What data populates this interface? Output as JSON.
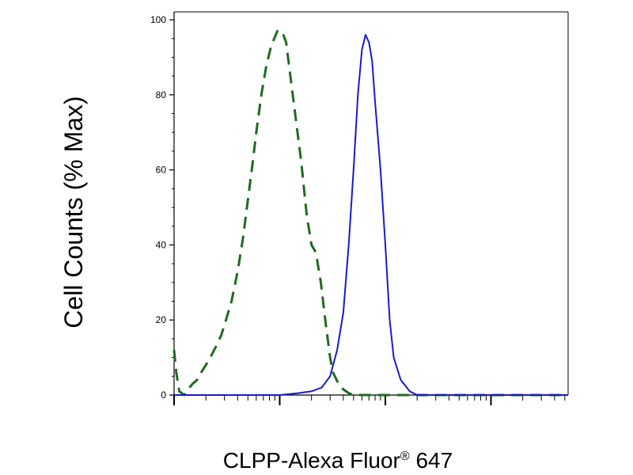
{
  "chart_data": {
    "type": "line",
    "title": "",
    "ylabel": "Cell Counts (% Max)",
    "xlabel": {
      "prefix": "CLPP-Alexa Fluor",
      "superscript": "®",
      "suffix": " 647"
    },
    "x_scale": "log",
    "y_ticks": [
      "0",
      "20",
      "40",
      "60",
      "80",
      "100"
    ],
    "ylim": [
      0,
      100
    ],
    "grid": false,
    "series": [
      {
        "style": "dashed",
        "color": "#1f6b1f",
        "x": [
          1.0,
          1.05,
          1.12,
          1.25,
          1.4,
          1.5,
          1.65,
          1.8,
          2.0,
          2.2,
          2.5,
          2.8,
          3.1,
          3.5,
          4.0,
          4.5,
          5.0,
          5.5,
          6.0,
          6.7,
          7.5,
          8.3,
          9.5,
          10.5,
          11.5,
          12.5,
          14.0,
          16.0,
          18.0,
          20.0,
          22.0,
          24.5,
          27.0,
          30.0,
          32.0,
          36.0,
          40.0,
          45.0,
          50.0,
          60.0,
          80.0,
          100.0,
          200.0,
          1000.0,
          10000.0,
          30000.0
        ],
        "y": [
          12,
          6,
          1,
          0,
          2,
          3,
          4,
          6,
          8,
          10,
          13,
          16,
          20,
          25,
          33,
          42,
          52,
          61,
          70,
          80,
          88,
          93,
          97,
          97,
          94,
          86,
          75,
          62,
          48,
          40,
          38,
          30,
          20,
          10,
          6,
          3,
          1.5,
          0.5,
          0,
          0,
          0,
          0,
          0,
          0,
          0,
          0
        ]
      },
      {
        "style": "solid",
        "color": "#1a1acc",
        "x": [
          1.0,
          10.0,
          15.0,
          20.0,
          25.0,
          30.0,
          35.0,
          40.0,
          45.0,
          50.0,
          55.0,
          60.0,
          65.0,
          70.0,
          75.0,
          80.0,
          90.0,
          100.0,
          110.0,
          120.0,
          140.0,
          170.0,
          200.0,
          1000.0,
          10000.0,
          30000.0
        ],
        "y": [
          0,
          0,
          0.5,
          1,
          2,
          5,
          12,
          22,
          40,
          60,
          80,
          92,
          96,
          94,
          89,
          78,
          60,
          40,
          20,
          10,
          4,
          1,
          0,
          0,
          0,
          0
        ]
      }
    ]
  }
}
